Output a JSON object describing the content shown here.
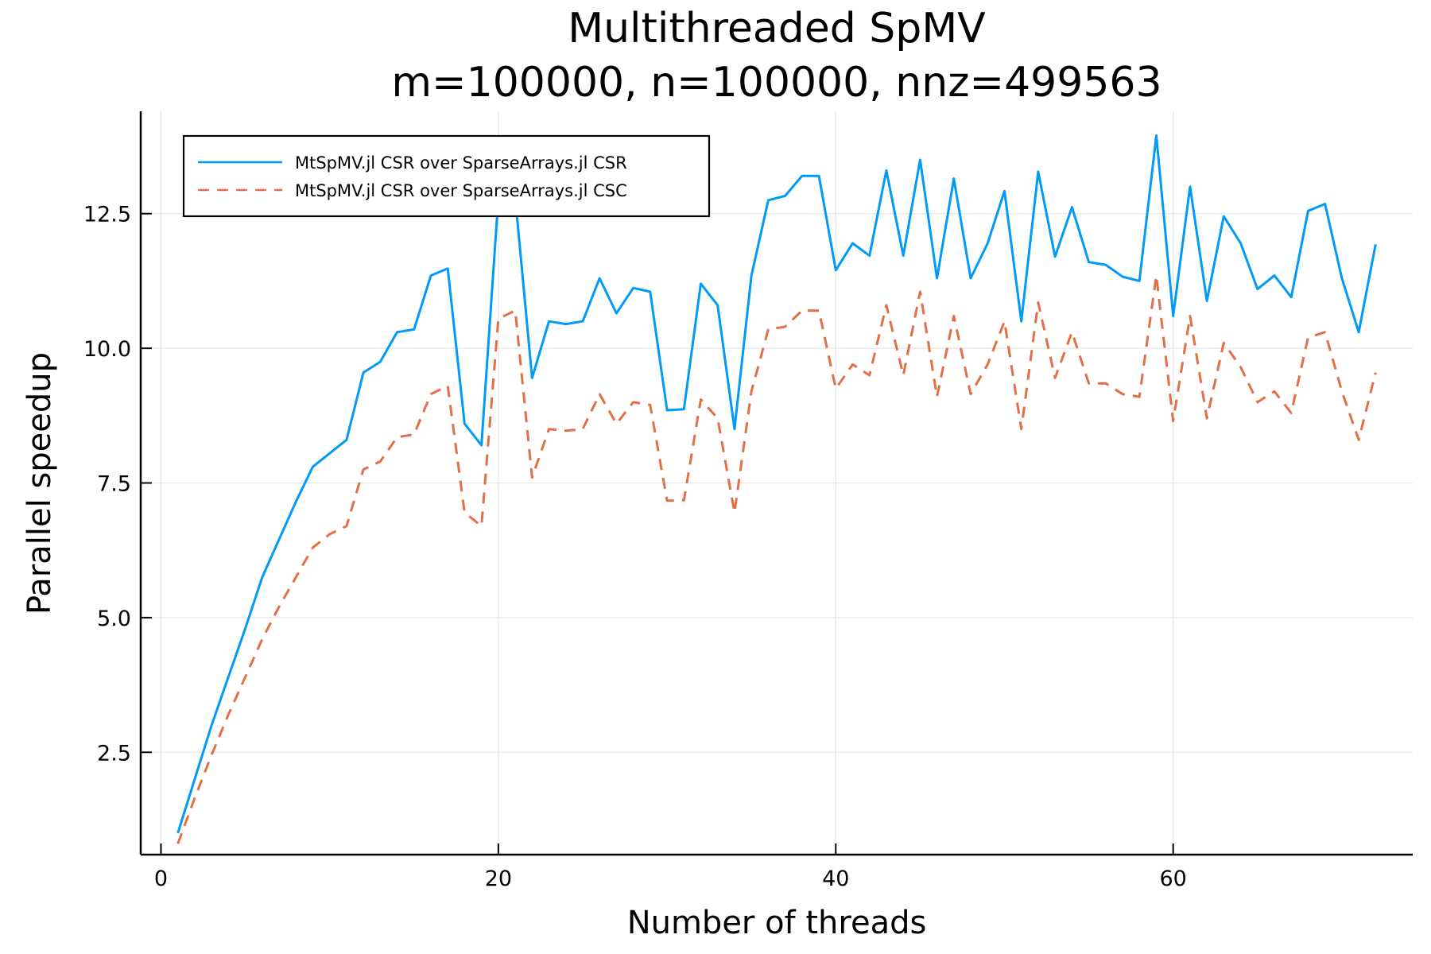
{
  "chart_data": {
    "type": "line",
    "title": "Multithreaded SpMV",
    "subtitle": "m=100000, n=100000, nnz=499563",
    "xlabel": "Number of threads",
    "ylabel": "Parallel speedup",
    "xlim": [
      -1.2,
      74.2
    ],
    "ylim": [
      0.6,
      14.4
    ],
    "xticks": [
      0,
      20,
      40,
      60
    ],
    "xtick_labels": [
      "0",
      "20",
      "40",
      "60"
    ],
    "yticks": [
      2.5,
      5.0,
      7.5,
      10.0,
      12.5
    ],
    "ytick_labels": [
      "2.5",
      "5.0",
      "7.5",
      "10.0",
      "12.5"
    ],
    "grid": true,
    "legend_position": "top-left",
    "x": [
      1,
      2,
      3,
      4,
      5,
      6,
      7,
      8,
      9,
      10,
      11,
      12,
      13,
      14,
      15,
      16,
      17,
      18,
      19,
      20,
      21,
      22,
      23,
      24,
      25,
      26,
      27,
      28,
      29,
      30,
      31,
      32,
      33,
      34,
      35,
      36,
      37,
      38,
      39,
      40,
      41,
      42,
      43,
      44,
      45,
      46,
      47,
      48,
      49,
      50,
      51,
      52,
      53,
      54,
      55,
      56,
      57,
      58,
      59,
      60,
      61,
      62,
      63,
      64,
      65,
      66,
      67,
      68,
      69,
      70,
      71,
      72
    ],
    "series": [
      {
        "name": "MtSpMV.jl CSR over SparseArrays.jl CSR",
        "color": "#009af9",
        "dash": "solid",
        "values": [
          1.0,
          2.0,
          3.0,
          3.9,
          4.8,
          5.75,
          6.45,
          7.15,
          7.8,
          8.05,
          8.3,
          9.55,
          9.75,
          10.3,
          10.35,
          11.35,
          11.48,
          8.6,
          8.2,
          12.8,
          12.8,
          9.45,
          10.5,
          10.45,
          10.5,
          11.3,
          10.65,
          11.12,
          11.05,
          8.85,
          8.87,
          11.2,
          10.8,
          8.5,
          11.35,
          12.75,
          12.83,
          13.2,
          13.2,
          11.45,
          11.95,
          11.72,
          13.3,
          11.72,
          13.5,
          11.3,
          13.15,
          11.3,
          11.95,
          12.92,
          10.5,
          13.28,
          11.7,
          12.62,
          11.6,
          11.55,
          11.33,
          11.25,
          13.95,
          10.6,
          13.0,
          10.88,
          12.45,
          11.95,
          11.1,
          11.35,
          10.95,
          12.55,
          12.68,
          11.3,
          10.3,
          11.93
        ]
      },
      {
        "name": "MtSpMV.jl CSR over SparseArrays.jl CSC",
        "color": "#e26f46",
        "dash": "dashed",
        "values": [
          0.8,
          1.65,
          2.45,
          3.2,
          3.9,
          4.6,
          5.2,
          5.75,
          6.3,
          6.55,
          6.7,
          7.75,
          7.9,
          8.35,
          8.4,
          9.15,
          9.3,
          6.95,
          6.7,
          10.55,
          10.7,
          7.6,
          8.5,
          8.47,
          8.5,
          9.15,
          8.6,
          9.0,
          8.95,
          7.17,
          7.18,
          9.05,
          8.7,
          6.95,
          9.2,
          10.35,
          10.4,
          10.7,
          10.7,
          9.25,
          9.7,
          9.5,
          10.8,
          9.5,
          11.05,
          9.1,
          10.6,
          9.15,
          9.7,
          10.5,
          8.5,
          10.85,
          9.45,
          10.3,
          9.35,
          9.35,
          9.15,
          9.1,
          11.35,
          8.65,
          10.6,
          8.7,
          10.1,
          9.65,
          9.0,
          9.2,
          8.8,
          10.2,
          10.3,
          9.2,
          8.3,
          9.55
        ]
      }
    ]
  }
}
